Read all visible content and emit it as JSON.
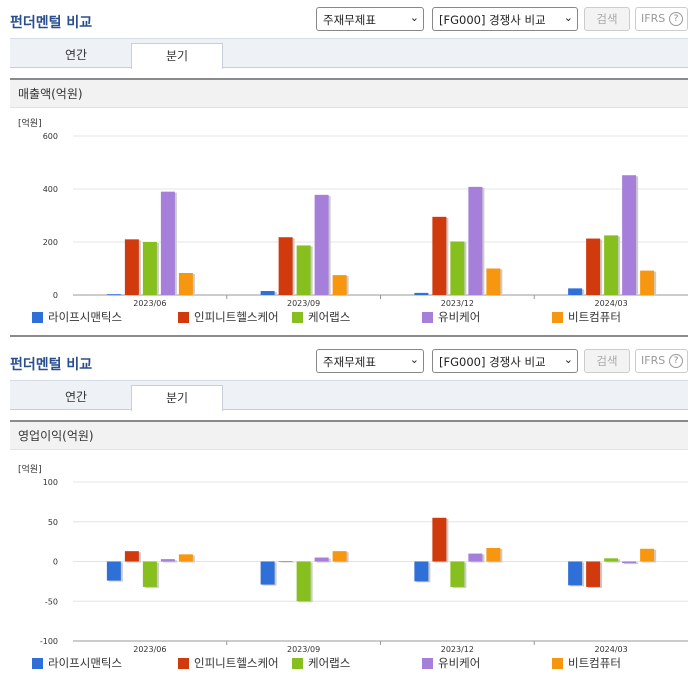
{
  "panels": [
    {
      "title": "펀더멘털 비교",
      "select1": "주재무제표",
      "select2": "[FG000] 경쟁사 비교",
      "search_button": "검색",
      "ifrs_button": "IFRS",
      "help_icon": "?",
      "tabs": [
        "연간",
        "분기"
      ],
      "active_tab": "분기",
      "chart_title": "매출액(억원)"
    },
    {
      "title": "펀더멘털 비교",
      "select1": "주재무제표",
      "select2": "[FG000] 경쟁사 비교",
      "search_button": "검색",
      "ifrs_button": "IFRS",
      "help_icon": "?",
      "tabs": [
        "연간",
        "분기"
      ],
      "active_tab": "분기",
      "chart_title": "영업이익(억원)"
    }
  ],
  "chart_data": [
    {
      "type": "bar",
      "unit_label": "[억원]",
      "categories": [
        "2023/06",
        "2023/09",
        "2023/12",
        "2024/03"
      ],
      "ylim": [
        0,
        600
      ],
      "yticks": [
        0,
        200,
        400,
        600
      ],
      "grid": true,
      "legend_position": "bottom",
      "series": [
        {
          "name": "라이프시맨틱스",
          "color": "#2f6fd8",
          "values": [
            3,
            15,
            8,
            25
          ]
        },
        {
          "name": "인피니트헬스케어",
          "color": "#d03a0c",
          "values": [
            210,
            218,
            295,
            213
          ]
        },
        {
          "name": "케어랩스",
          "color": "#86bf1e",
          "values": [
            200,
            187,
            202,
            225
          ]
        },
        {
          "name": "유비케어",
          "color": "#a57fd9",
          "values": [
            390,
            378,
            408,
            452
          ]
        },
        {
          "name": "비트컴퓨터",
          "color": "#f7960f",
          "values": [
            83,
            75,
            100,
            92
          ]
        }
      ]
    },
    {
      "type": "bar",
      "unit_label": "[억원]",
      "categories": [
        "2023/06",
        "2023/09",
        "2023/12",
        "2024/03"
      ],
      "ylim": [
        -100,
        100
      ],
      "yticks": [
        -100,
        -50,
        0,
        50,
        100
      ],
      "grid": true,
      "legend_position": "bottom",
      "series": [
        {
          "name": "라이프시맨틱스",
          "color": "#2f6fd8",
          "values": [
            -24,
            -29,
            -25,
            -30
          ]
        },
        {
          "name": "인피니트헬스케어",
          "color": "#d03a0c",
          "values": [
            13,
            0,
            55,
            -32
          ]
        },
        {
          "name": "케어랩스",
          "color": "#86bf1e",
          "values": [
            -32,
            -50,
            -32,
            4
          ]
        },
        {
          "name": "유비케어",
          "color": "#a57fd9",
          "values": [
            3,
            5,
            10,
            -2
          ]
        },
        {
          "name": "비트컴퓨터",
          "color": "#f7960f",
          "values": [
            9,
            13,
            17,
            16
          ]
        }
      ]
    }
  ]
}
